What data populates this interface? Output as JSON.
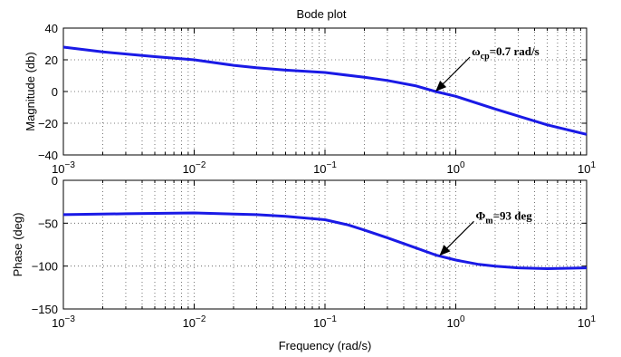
{
  "chart_data": [
    {
      "type": "line",
      "title": "Bode plot",
      "xlabel": "",
      "ylabel": "Magnitude (db)",
      "xscale": "log",
      "xlim": [
        0.001,
        10
      ],
      "ylim": [
        -40,
        40
      ],
      "yticks": [
        -40,
        -20,
        0,
        20,
        40
      ],
      "xticks": [
        {
          "value": 0.001,
          "base": "10",
          "exp": "−3"
        },
        {
          "value": 0.01,
          "base": "10",
          "exp": "−2"
        },
        {
          "value": 0.1,
          "base": "10",
          "exp": "−1"
        },
        {
          "value": 1,
          "base": "10",
          "exp": "0"
        },
        {
          "value": 10,
          "base": "10",
          "exp": "1"
        }
      ],
      "grid": true,
      "series_color": "#1a1ae6",
      "series": [
        {
          "x": [
            0.001,
            0.002,
            0.005,
            0.01,
            0.02,
            0.03,
            0.05,
            0.1,
            0.2,
            0.3,
            0.5,
            0.7,
            1,
            2,
            3,
            5,
            10
          ],
          "y": [
            28,
            25,
            22,
            20,
            16.5,
            15,
            13.5,
            12,
            9,
            7,
            3.5,
            0,
            -3,
            -11,
            -15.5,
            -21,
            -27
          ]
        }
      ],
      "annotation": {
        "symbol": "ω",
        "subscript": "cp",
        "text": "=0.7 rad/s",
        "x": 0.7,
        "y": 0
      }
    },
    {
      "type": "line",
      "title": "",
      "xlabel": "Frequency (rad/s)",
      "ylabel": "Phase (deg)",
      "xscale": "log",
      "xlim": [
        0.001,
        10
      ],
      "ylim": [
        -150,
        0
      ],
      "yticks": [
        -150,
        -100,
        -50,
        0
      ],
      "xticks": [
        {
          "value": 0.001,
          "base": "10",
          "exp": "−3"
        },
        {
          "value": 0.01,
          "base": "10",
          "exp": "−2"
        },
        {
          "value": 0.1,
          "base": "10",
          "exp": "−1"
        },
        {
          "value": 1,
          "base": "10",
          "exp": "0"
        },
        {
          "value": 10,
          "base": "10",
          "exp": "1"
        }
      ],
      "grid": true,
      "series_color": "#1a1ae6",
      "series": [
        {
          "x": [
            0.001,
            0.003,
            0.01,
            0.03,
            0.05,
            0.1,
            0.15,
            0.2,
            0.3,
            0.5,
            0.7,
            1,
            1.5,
            2,
            3,
            5,
            10
          ],
          "y": [
            -40,
            -39,
            -38,
            -40,
            -42,
            -46,
            -52,
            -58,
            -67,
            -79,
            -87,
            -93,
            -98,
            -100,
            -102,
            -103,
            -102
          ]
        }
      ],
      "annotation": {
        "symbol": "Φ",
        "subscript": "m",
        "text": "=93 deg",
        "x": 0.75,
        "y": -88
      }
    }
  ]
}
